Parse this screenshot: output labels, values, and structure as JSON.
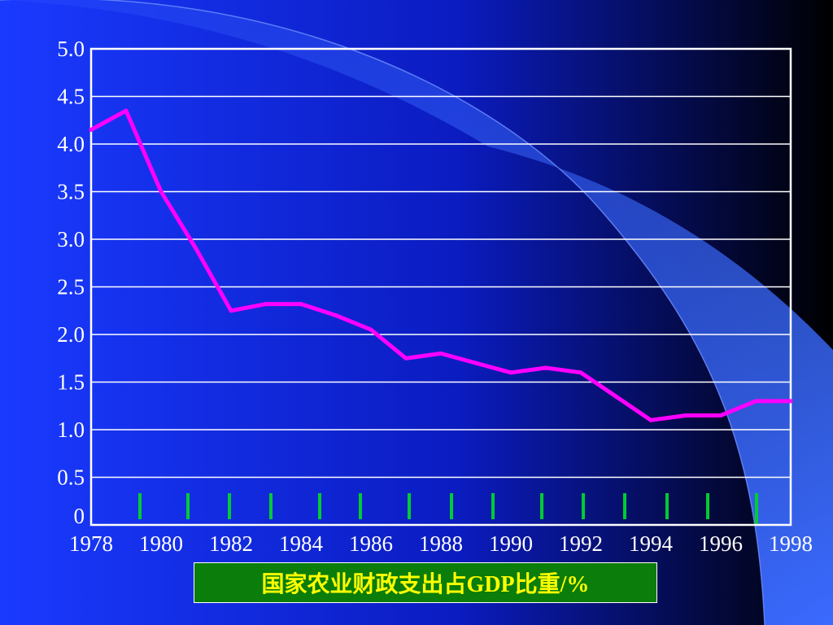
{
  "colors": {
    "background_left": "#1a3aff",
    "background_right": "#000000",
    "line": "#ff00ff",
    "grid": "#ffffff",
    "ticks": "#00cc33",
    "caption_bg": "#0a7d0a",
    "caption_text": "#ffff00",
    "swoosh": "#3a6aff"
  },
  "caption": "国家农业财政支出占GDP比重/%",
  "chart_data": {
    "type": "line",
    "title": "国家农业财政支出占GDP比重/%",
    "xlabel": "",
    "ylabel": "",
    "xlim": [
      1978,
      1998
    ],
    "ylim": [
      0,
      5.0
    ],
    "grid": true,
    "x_tick_labels": [
      "1978",
      "1980",
      "1982",
      "1984",
      "1986",
      "1988",
      "1990",
      "1992",
      "1994",
      "1996",
      "1998"
    ],
    "y_tick_labels": [
      "0",
      "0.5",
      "1.0",
      "1.5",
      "2.0",
      "2.5",
      "3.0",
      "3.5",
      "4.0",
      "4.5",
      "5.0"
    ],
    "series": [
      {
        "name": "",
        "x": [
          1978,
          1979,
          1980,
          1981,
          1982,
          1983,
          1984,
          1985,
          1986,
          1987,
          1988,
          1989,
          1990,
          1991,
          1992,
          1993,
          1994,
          1995,
          1996,
          1997,
          1998
        ],
        "values": [
          4.15,
          4.35,
          3.5,
          2.9,
          2.25,
          2.32,
          2.32,
          2.2,
          2.05,
          1.75,
          1.8,
          1.7,
          1.6,
          1.65,
          1.6,
          1.35,
          1.1,
          1.15,
          1.15,
          1.3,
          1.3
        ]
      }
    ]
  }
}
